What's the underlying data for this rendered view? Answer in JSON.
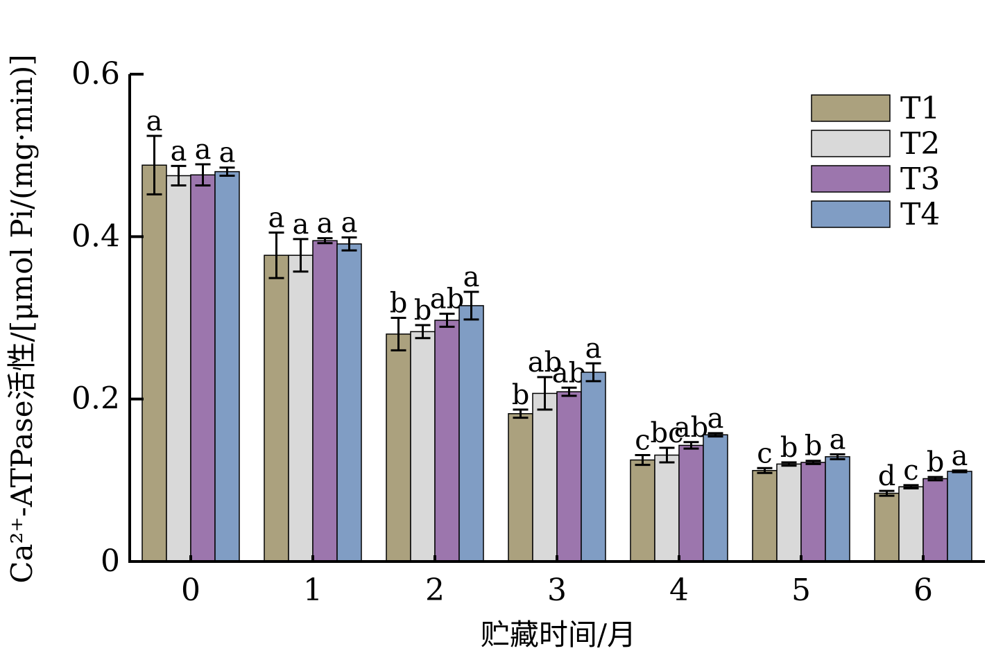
{
  "chart_data": {
    "type": "bar",
    "xlabel": "贮藏时间/月",
    "ylabel": "Ca²⁺-ATPase活性/[μmol Pi/(mg·min)]",
    "ylim": [
      0,
      0.6
    ],
    "yticks": [
      "0",
      "0.2",
      "0.4",
      "0.6"
    ],
    "categories": [
      "0",
      "1",
      "2",
      "3",
      "4",
      "5",
      "6"
    ],
    "legend_position": "top-right",
    "grid": false,
    "series": [
      {
        "name": "T1",
        "color": "#aba17e",
        "values": [
          0.488,
          0.377,
          0.28,
          0.182,
          0.125,
          0.112,
          0.084
        ],
        "errors": [
          0.036,
          0.028,
          0.02,
          0.005,
          0.006,
          0.003,
          0.003
        ],
        "letters": [
          "a",
          "a",
          "b",
          "b",
          "c",
          "c",
          "d"
        ]
      },
      {
        "name": "T2",
        "color": "#d9d9d9",
        "values": [
          0.475,
          0.377,
          0.283,
          0.207,
          0.131,
          0.12,
          0.092
        ],
        "errors": [
          0.012,
          0.02,
          0.008,
          0.02,
          0.009,
          0.002,
          0.002
        ],
        "letters": [
          "a",
          "a",
          "b",
          "ab",
          "bc",
          "b",
          "c"
        ]
      },
      {
        "name": "T3",
        "color": "#9c76ad",
        "values": [
          0.476,
          0.395,
          0.297,
          0.209,
          0.143,
          0.122,
          0.102
        ],
        "errors": [
          0.013,
          0.003,
          0.008,
          0.005,
          0.004,
          0.002,
          0.002
        ],
        "letters": [
          "a",
          "a",
          "ab",
          "ab",
          "ab",
          "b",
          "b"
        ]
      },
      {
        "name": "T4",
        "color": "#809dc4",
        "values": [
          0.48,
          0.391,
          0.315,
          0.233,
          0.156,
          0.129,
          0.111
        ],
        "errors": [
          0.005,
          0.008,
          0.017,
          0.011,
          0.002,
          0.003,
          0.001
        ],
        "letters": [
          "a",
          "a",
          "a",
          "a",
          "a",
          "a",
          "a"
        ]
      }
    ]
  }
}
